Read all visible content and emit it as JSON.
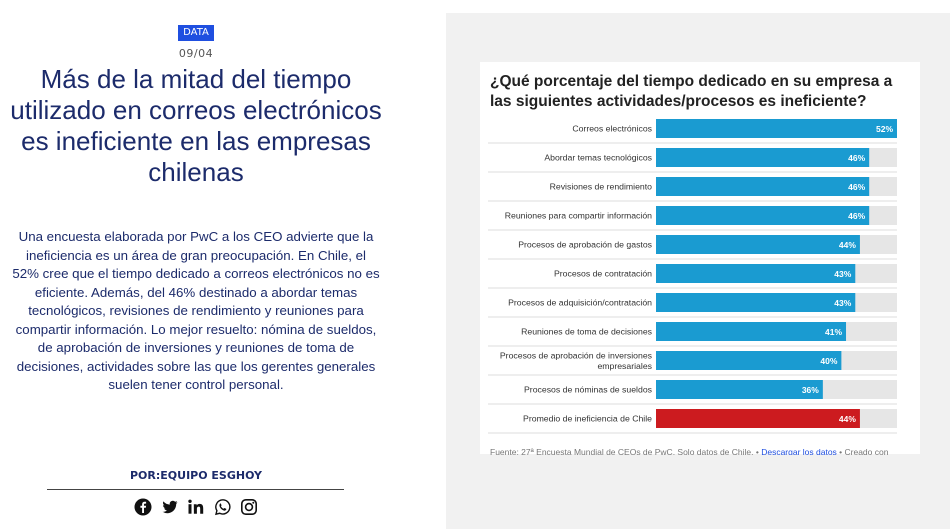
{
  "article": {
    "badge": "DATA",
    "date": "09/04",
    "headline": "Más de la mitad del tiempo utilizado en correos electrónicos es ineficiente en las empresas chilenas",
    "lead": "Una encuesta elaborada por PwC a los CEO advierte que la ineficiencia es un área de gran preocupación. En Chile, el 52% cree que el tiempo dedicado a correos electrónicos no es eficiente. Además, del 46% destinado a abordar temas tecnológicos, revisiones de rendimiento y reuniones para compartir información. Lo mejor resuelto: nómina de sueldos, de aprobación de inversiones y reuniones de toma de decisiones, actividades sobre las que los gerentes generales suelen tener control personal.",
    "byline": "POR:EQUIPO ESGHOY",
    "share_icons": [
      "facebook-icon",
      "twitter-icon",
      "linkedin-icon",
      "whatsapp-icon",
      "instagram-icon"
    ]
  },
  "source": {
    "prefix": "Fuente: 27ª Encuesta Mundial de CEOs de PwC. Solo datos de Chile. •",
    "download_link": "Descargar los datos",
    "suffix": "• Creado con"
  },
  "chart_data": {
    "type": "bar",
    "orientation": "horizontal",
    "title": "¿Qué porcentaje del tiempo dedicado en su empresa a las siguientes actividades/procesos es ineficiente?",
    "categories": [
      "Correos electrónicos",
      "Abordar temas tecnológicos",
      "Revisiones de rendimiento",
      "Reuniones para compartir información",
      "Procesos de aprobación de gastos",
      "Procesos de contratación",
      "Procesos de adquisición/contratación",
      "Reuniones de toma de decisiones",
      "Procesos de aprobación de inversiones empresariales",
      "Procesos de nóminas de sueldos",
      "Promedio de ineficiencia de Chile"
    ],
    "values": [
      52,
      46,
      46,
      46,
      44,
      43,
      43,
      41,
      40,
      36,
      44
    ],
    "value_labels": [
      "52%",
      "46%",
      "46%",
      "46%",
      "44%",
      "43%",
      "43%",
      "41%",
      "40%",
      "36%",
      "44%"
    ],
    "xlim": [
      0,
      52
    ],
    "grid": false,
    "colors": {
      "default": "#1a9bd1",
      "highlight": "#cc1b1f",
      "track": "#e6e6e6"
    },
    "highlight_index": 10
  },
  "colors": {
    "badge": "#1f4fe0",
    "headline": "#1c2b6b",
    "panel": "#f1f1f1"
  }
}
